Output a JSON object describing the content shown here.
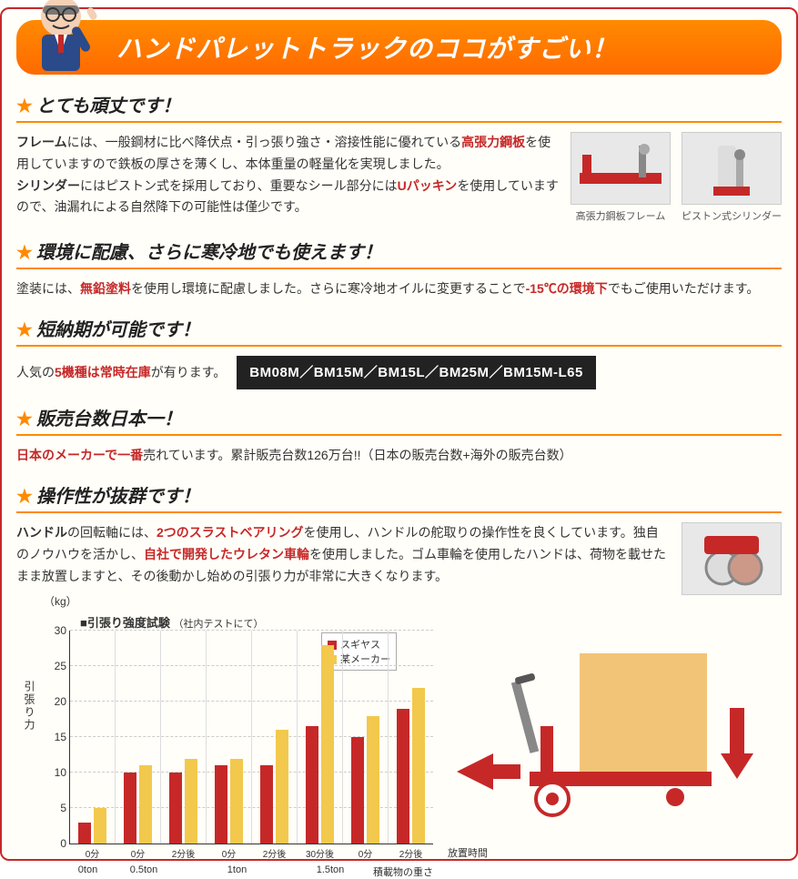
{
  "banner": {
    "title": "ハンドパレットトラックのココがすごい！"
  },
  "sections": [
    {
      "title": "とても頑丈です！",
      "body_html": "<b>フレーム</b>には、一般鋼材に比べ降伏点・引っ張り強さ・溶接性能に優れている<span class='hl'>高張力鋼板</span>を使用していますので鉄板の厚さを薄くし、本体重量の軽量化を実現しました。<br><b>シリンダー</b>にはピストン式を採用しており、重要なシール部分には<span class='hl'>Uパッキン</span>を使用していますので、油漏れによる自然降下の可能性は僅少です。",
      "images": [
        {
          "caption": "高張力鋼板フレーム"
        },
        {
          "caption": "ピストン式シリンダー"
        }
      ]
    },
    {
      "title": "環境に配慮、さらに寒冷地でも使えます！",
      "body_html": "塗装には、<span class='hl'>無鉛塗料</span>を使用し環境に配慮しました。さらに寒冷地オイルに変更することで<span class='hl'>-15℃の環境下</span>でもご使用いただけます。"
    },
    {
      "title": "短納期が可能です！",
      "body_html": "人気の<span class='hl'>5機種は常時在庫</span>が有ります。",
      "models": "BM08M／BM15M／BM15L／BM25M／BM15M-L65"
    },
    {
      "title": "販売台数日本一！",
      "body_html": "<span class='hl'>日本のメーカーで一番</span>売れています。累計販売台数126万台!!（日本の販売台数+海外の販売台数）"
    },
    {
      "title": "操作性が抜群です！",
      "body_html": "<b>ハンドル</b>の回転軸には、<span class='hl'>2つのスラストベアリング</span>を使用し、ハンドルの舵取りの操作性を良くしています。独自のノウハウを活かし、<span class='hl'>自社で開発したウレタン車輪</span>を使用しました。ゴム車輪を使用したハンドは、荷物を載せたまま放置しますと、その後動かし始めの引張り力が非常に大きくなります。",
      "images": [
        {
          "caption": ""
        }
      ]
    }
  ],
  "chart": {
    "type": "bar",
    "title": "■引張り強度試験",
    "title_sub": "（社内テストにて）",
    "y_unit": "（kg）",
    "y_label": "引張り力",
    "ylim": [
      0,
      30
    ],
    "ytick_step": 5,
    "series": [
      {
        "name": "スギヤス",
        "color": "#c62828"
      },
      {
        "name": "某メーカー",
        "color": "#f2c94c"
      }
    ],
    "categories": [
      {
        "label": "0ton",
        "groups": [
          {
            "x": "0分",
            "values": [
              3,
              5
            ]
          }
        ]
      },
      {
        "label": "0.5ton",
        "groups": [
          {
            "x": "0分",
            "values": [
              10,
              11
            ]
          },
          {
            "x": "2分後",
            "values": [
              10,
              12
            ]
          }
        ]
      },
      {
        "label": "1ton",
        "groups": [
          {
            "x": "0分",
            "values": [
              11,
              12
            ]
          },
          {
            "x": "2分後",
            "values": [
              11,
              16
            ]
          },
          {
            "x": "30分後",
            "values": [
              16.5,
              28
            ]
          }
        ]
      },
      {
        "label": "1.5ton",
        "groups": [
          {
            "x": "0分",
            "values": [
              15,
              18
            ]
          },
          {
            "x": "2分後",
            "values": [
              19,
              22
            ]
          }
        ]
      }
    ],
    "x_axis_label_top": "放置時間",
    "x_axis_label_bottom": "積載物の重さ",
    "background_color": "#ffffff",
    "grid_color": "#cccccc"
  },
  "colors": {
    "accent_orange": "#ff8a00",
    "accent_red": "#c62828",
    "border_red": "#c62828"
  }
}
